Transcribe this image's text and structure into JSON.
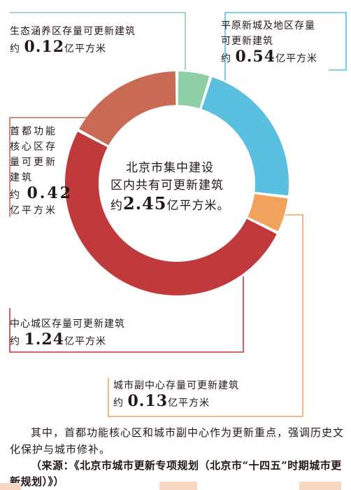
{
  "chart_data": {
    "type": "pie",
    "style": "donut",
    "total_text": {
      "line1": "北京市集中建设",
      "line2": "区内共有可更新建筑",
      "prefix": "约",
      "value": "2.45",
      "unit": "亿平方米。"
    },
    "slices": [
      {
        "name": "生态涵养区存量可更新建筑",
        "value": 0.12,
        "color": "#8ecfa5"
      },
      {
        "name": "平原新城及地区存量可更新建筑",
        "value": 0.54,
        "color": "#5bbfe0"
      },
      {
        "name": "城市副中心存量可更新建筑",
        "value": 0.13,
        "color": "#f1a35e"
      },
      {
        "name": "中心城区存量可更新建筑",
        "value": 1.24,
        "color": "#c0393b"
      },
      {
        "name": "首都功能核心区存量可更新建筑",
        "value": 0.42,
        "color": "#c96a55"
      }
    ]
  },
  "labels": {
    "eco": {
      "line1": "生态涵养区存量可更新建筑",
      "prefix": "约",
      "value": "0.12",
      "unit": "亿平方米"
    },
    "plain": {
      "line1": "平原新城及地区存量",
      "line2": "可更新建筑",
      "prefix": "约",
      "value": "0.54",
      "unit": "亿平方米"
    },
    "core": {
      "line1": "首都功能",
      "line2": "核心区存",
      "line3": "量可更新",
      "line4": "建筑",
      "prefix": "约",
      "value": "0.42",
      "unit": "亿平方米"
    },
    "central": {
      "line1": "中心城区存量可更新建筑",
      "prefix": "约",
      "value": "1.24",
      "unit": "亿平方米"
    },
    "sub": {
      "line1": "城市副中心存量可更新建筑",
      "prefix": "约",
      "value": "0.13",
      "unit": "亿平方米"
    }
  },
  "note": "其中，首都功能核心区和城市副中心作为更新重点，强调历史文化保护与城市修补。",
  "source": "（来源：《北京市城市更新专项规划（北京市“十四五”时期城市更新规划）》）"
}
